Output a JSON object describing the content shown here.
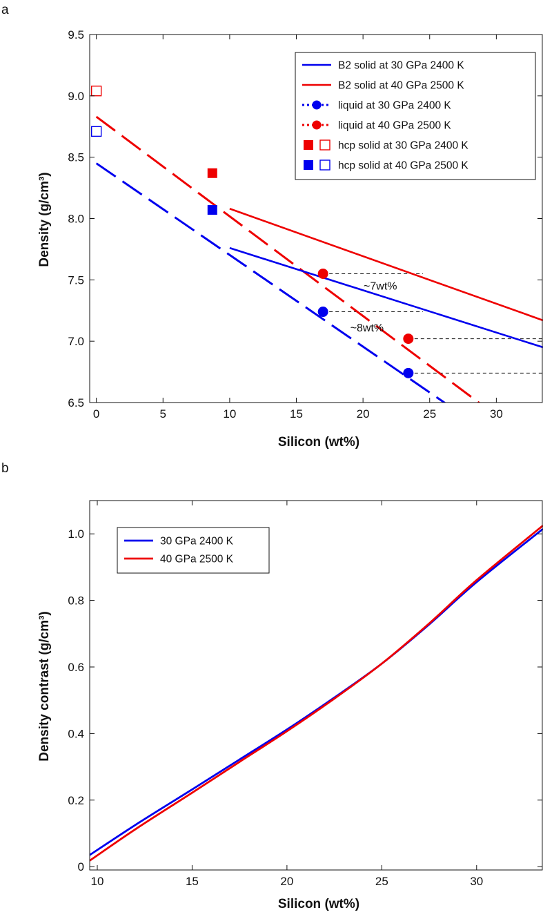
{
  "chart_data": [
    {
      "panel": "a",
      "type": "line",
      "xlabel": "Silicon (wt%)",
      "ylabel": "Density (g/cm³)",
      "xlim": [
        -0.5,
        33.5
      ],
      "ylim": [
        6.5,
        9.5
      ],
      "xticks": [
        0,
        5,
        10,
        15,
        20,
        25,
        30
      ],
      "yticks": [
        6.5,
        7.0,
        7.5,
        8.0,
        8.5,
        9.0,
        9.5
      ],
      "ytick_labels": [
        "6.5",
        "7.0",
        "7.5",
        "8.0",
        "8.5",
        "9.0",
        "9.5"
      ],
      "legend_position": "top-right",
      "series": [
        {
          "name": "B2 solid at 30 GPa 2400 K",
          "style": "solid",
          "color": "#0000ee",
          "x": [
            10,
            33.5
          ],
          "y": [
            7.76,
            6.95
          ]
        },
        {
          "name": "B2 solid at 40 GPa 2500 K",
          "style": "solid",
          "color": "#ee0000",
          "x": [
            10,
            33.5
          ],
          "y": [
            8.08,
            7.17
          ]
        },
        {
          "name": "liquid at 30 GPa 2400 K",
          "style": "dotted-marker",
          "color": "#0000ee",
          "x": [
            17,
            23.4
          ],
          "y": [
            7.24,
            6.74
          ],
          "fit_x": [
            0,
            26.5
          ],
          "fit_y": [
            8.45,
            6.47
          ]
        },
        {
          "name": "liquid at 40 GPa 2500 K",
          "style": "dotted-marker",
          "color": "#ee0000",
          "x": [
            17,
            23.4
          ],
          "y": [
            7.55,
            7.02
          ],
          "fit_x": [
            0,
            29.3
          ],
          "fit_y": [
            8.83,
            6.45
          ]
        },
        {
          "name": "hcp solid at 30 GPa 2400 K",
          "style": "square",
          "color": "#ee0000",
          "filled": {
            "x": 8.7,
            "y": 8.37
          },
          "open": {
            "x": 0,
            "y": 9.04
          }
        },
        {
          "name": "hcp solid at 40 GPa 2500 K",
          "style": "square",
          "color": "#0000ee",
          "filled": {
            "x": 8.7,
            "y": 8.07
          },
          "open": {
            "x": 0,
            "y": 8.71
          }
        }
      ],
      "reference_lines": [
        {
          "y": 7.55,
          "x_from": 17,
          "x_to": 24.5
        },
        {
          "y": 7.24,
          "x_from": 17,
          "x_to": 24.5
        },
        {
          "y": 7.02,
          "x_from": 23.4,
          "x_to": 33.5
        },
        {
          "y": 6.74,
          "x_from": 23.4,
          "x_to": 33.5
        }
      ],
      "annotations": [
        {
          "text": "~7wt%",
          "x": 21.3,
          "y": 7.42
        },
        {
          "text": "~8wt%",
          "x": 20.3,
          "y": 7.08
        }
      ]
    },
    {
      "panel": "b",
      "type": "line",
      "xlabel": "Silicon (wt%)",
      "ylabel": "Density contrast (g/cm³)",
      "xlim": [
        9.6,
        33.5
      ],
      "ylim": [
        -0.01,
        1.1
      ],
      "xticks": [
        10,
        15,
        20,
        25,
        30
      ],
      "yticks": [
        0,
        0.2,
        0.4,
        0.6,
        0.8,
        1.0
      ],
      "ytick_labels": [
        "0",
        "0.2",
        "0.4",
        "0.6",
        "0.8",
        "1.0"
      ],
      "legend_position": "top-left",
      "series": [
        {
          "name": "30 GPa 2400 K",
          "color": "#0000ee",
          "x": [
            9.6,
            12,
            15,
            17.5,
            20,
            22.5,
            25,
            27.5,
            30,
            33.5
          ],
          "y": [
            0.035,
            0.125,
            0.232,
            0.322,
            0.412,
            0.508,
            0.61,
            0.728,
            0.855,
            1.015
          ]
        },
        {
          "name": "40 GPa 2500 K",
          "color": "#ee0000",
          "x": [
            9.6,
            12,
            15,
            17.5,
            20,
            22.5,
            25,
            27.5,
            30,
            33.5
          ],
          "y": [
            0.018,
            0.112,
            0.222,
            0.315,
            0.407,
            0.505,
            0.61,
            0.731,
            0.861,
            1.025
          ]
        }
      ]
    }
  ]
}
